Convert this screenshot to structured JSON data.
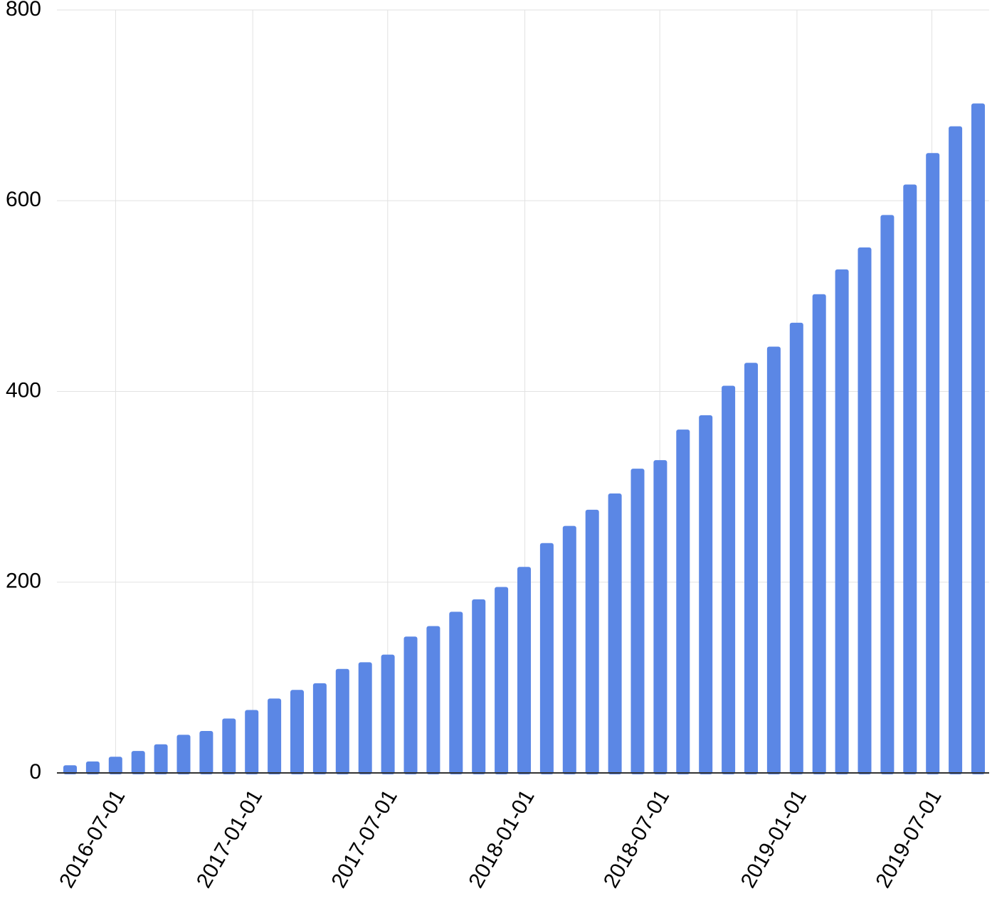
{
  "chart_data": {
    "type": "bar",
    "title": "",
    "xlabel": "",
    "ylabel": "",
    "x_labels": [
      "2016-07-01",
      "2017-01-01",
      "2017-07-01",
      "2018-01-01",
      "2018-07-01",
      "2019-01-01",
      "2019-07-01"
    ],
    "x_dates": [
      "2016-05-01",
      "2016-06-01",
      "2016-07-01",
      "2016-08-01",
      "2016-09-01",
      "2016-10-01",
      "2016-11-01",
      "2016-12-01",
      "2017-01-01",
      "2017-02-01",
      "2017-03-01",
      "2017-04-01",
      "2017-05-01",
      "2017-06-01",
      "2017-07-01",
      "2017-08-01",
      "2017-09-01",
      "2017-10-01",
      "2017-11-01",
      "2017-12-01",
      "2018-01-01",
      "2018-02-01",
      "2018-03-01",
      "2018-04-01",
      "2018-05-01",
      "2018-06-01",
      "2018-07-01",
      "2018-08-01",
      "2018-09-01",
      "2018-10-01",
      "2018-11-01",
      "2018-12-01",
      "2019-01-01",
      "2019-02-01",
      "2019-03-01",
      "2019-04-01",
      "2019-05-01",
      "2019-06-01",
      "2019-07-01",
      "2019-08-01",
      "2019-09-01"
    ],
    "values": [
      8,
      12,
      17,
      23,
      30,
      40,
      44,
      57,
      66,
      78,
      87,
      94,
      109,
      116,
      124,
      143,
      154,
      169,
      182,
      195,
      216,
      241,
      259,
      276,
      293,
      319,
      328,
      360,
      375,
      406,
      430,
      447,
      472,
      502,
      528,
      551,
      585,
      617,
      650,
      678,
      702
    ],
    "y_ticks": [
      0,
      200,
      400,
      600,
      800
    ],
    "ylim": [
      0,
      800
    ],
    "grid": true,
    "bar_color": "#5b87e5",
    "grid_color": "#e2e2e2",
    "baseline_color": "#333333"
  }
}
